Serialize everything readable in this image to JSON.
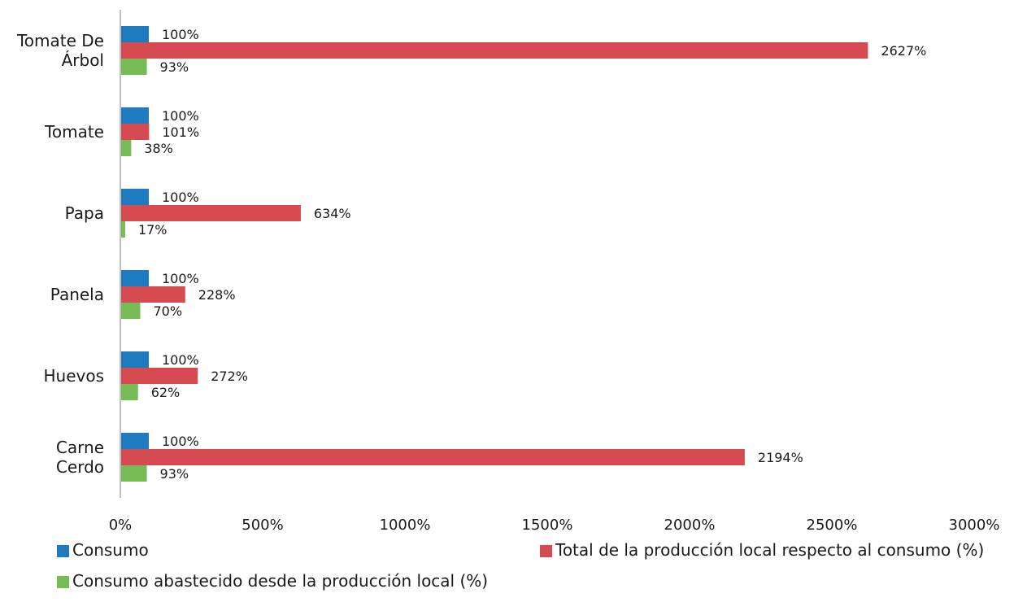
{
  "chart_data": {
    "type": "bar",
    "orientation": "horizontal",
    "categories": [
      "Tomate De Árbol",
      "Tomate",
      "Papa",
      "Panela",
      "Huevos",
      "Carne Cerdo"
    ],
    "category_lines": [
      [
        "Tomate De",
        "Árbol"
      ],
      [
        "Tomate"
      ],
      [
        "Papa"
      ],
      [
        "Panela"
      ],
      [
        "Huevos"
      ],
      [
        "Carne",
        "Cerdo"
      ]
    ],
    "series": [
      {
        "name": "Consumo",
        "color": "#1f7bbf",
        "values": [
          100,
          100,
          100,
          100,
          100,
          100
        ],
        "labels": [
          "100%",
          "100%",
          "100%",
          "100%",
          "100%",
          "100%"
        ]
      },
      {
        "name": "Total de la producción local respecto al consumo (%)",
        "color": "#d64b52",
        "values": [
          2627,
          101,
          634,
          228,
          272,
          2194
        ],
        "labels": [
          "2627%",
          "101%",
          "634%",
          "228%",
          "272%",
          "2194%"
        ]
      },
      {
        "name": "Consumo abastecido desde la producción local (%)",
        "color": "#77bb55",
        "values": [
          93,
          38,
          17,
          70,
          62,
          93
        ],
        "labels": [
          "93%",
          "38%",
          "17%",
          "70%",
          "62%",
          "93%"
        ]
      }
    ],
    "xlim": [
      0,
      3000
    ],
    "xticks": [
      0,
      500,
      1000,
      1500,
      2000,
      2500,
      3000
    ],
    "xtick_labels": [
      "0%",
      "500%",
      "1000%",
      "1500%",
      "2000%",
      "2500%",
      "3000%"
    ],
    "title": "",
    "xlabel": "",
    "ylabel": "",
    "grid": false,
    "legend_position": "bottom"
  }
}
